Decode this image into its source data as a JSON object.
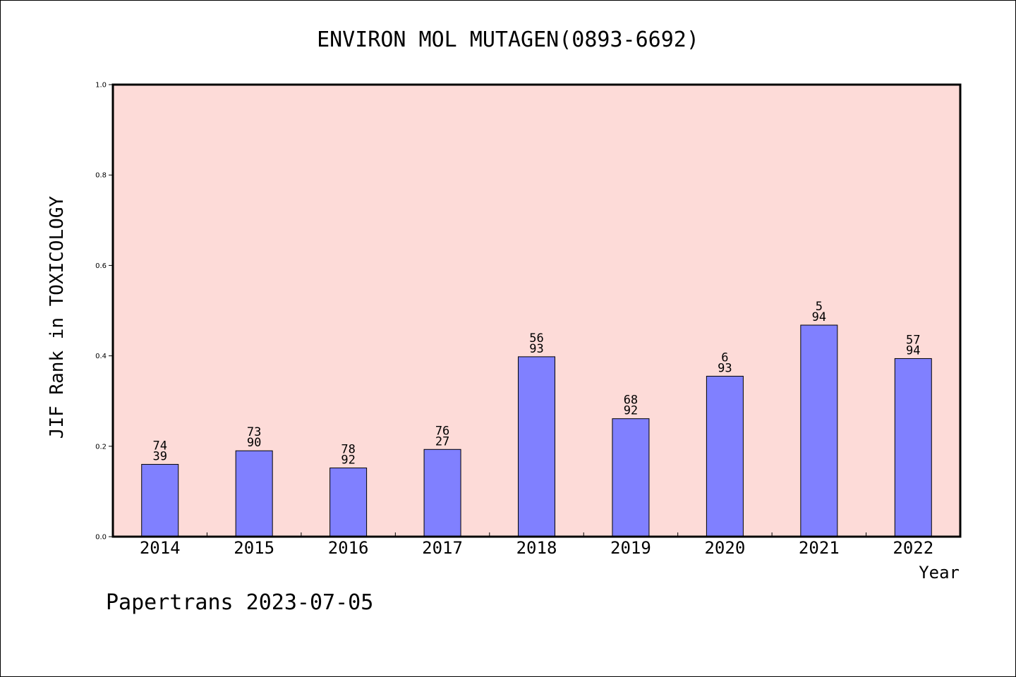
{
  "chart_data": {
    "type": "bar",
    "title": "ENVIRON MOL MUTAGEN(0893-6692)",
    "xlabel": "Year",
    "ylabel": "JIF Rank in TOXICOLOGY",
    "ylim": [
      0,
      1.0
    ],
    "yticks": [
      "0.0",
      "0.2",
      "0.4",
      "0.6",
      "0.8",
      "1.0"
    ],
    "categories": [
      "2014",
      "2015",
      "2016",
      "2017",
      "2018",
      "2019",
      "2020",
      "2021",
      "2022"
    ],
    "values": [
      0.16,
      0.19,
      0.152,
      0.193,
      0.398,
      0.261,
      0.355,
      0.468,
      0.394
    ],
    "labels": [
      [
        "74",
        "39"
      ],
      [
        "73",
        "90"
      ],
      [
        "78",
        "92"
      ],
      [
        "76",
        "27"
      ],
      [
        "56",
        "93"
      ],
      [
        "68",
        "92"
      ],
      [
        "6",
        "93"
      ],
      [
        "5",
        "94"
      ],
      [
        "57",
        "94"
      ]
    ],
    "grid": false,
    "colors": {
      "plot_bg": "#fddbd8",
      "bar": "#8080ff",
      "axis": "#000000"
    }
  },
  "footer": "Papertrans 2023-07-05"
}
